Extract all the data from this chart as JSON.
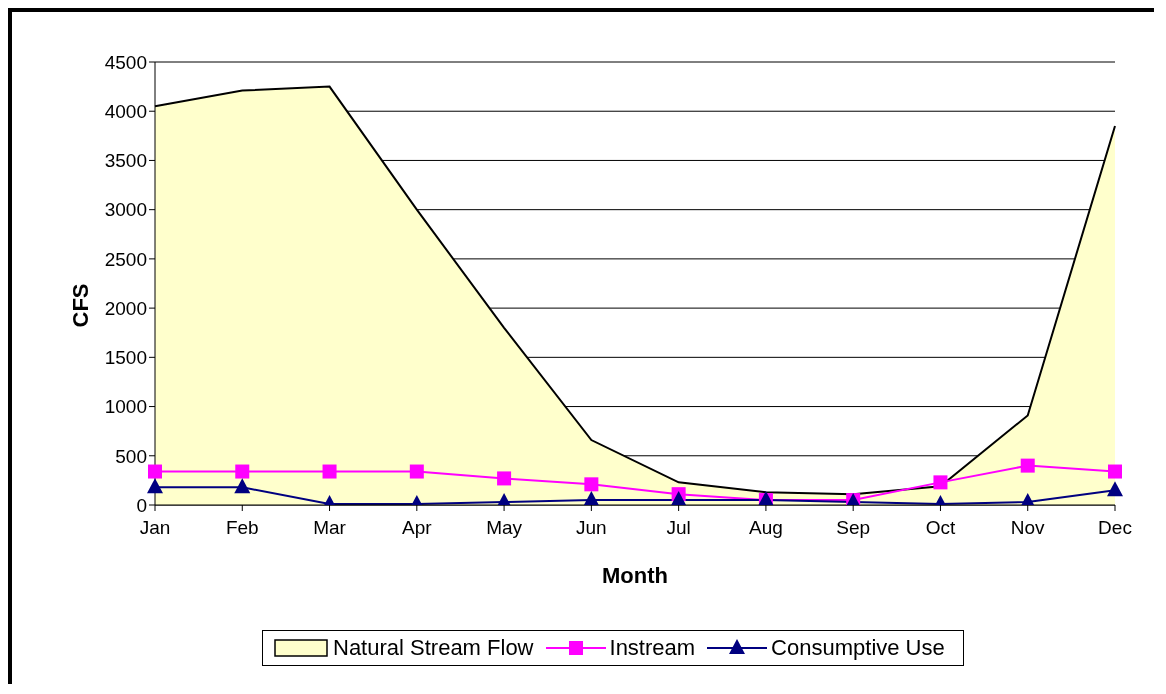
{
  "chart_data": {
    "type": "line",
    "xlabel": "Month",
    "ylabel": "CFS",
    "categories": [
      "Jan",
      "Feb",
      "Mar",
      "Apr",
      "May",
      "Jun",
      "Jul",
      "Aug",
      "Sep",
      "Oct",
      "Nov",
      "Dec"
    ],
    "series": [
      {
        "name": "Natural Stream Flow",
        "type": "area",
        "color": "#ffffcc",
        "values": [
          4050,
          4210,
          4250,
          3000,
          1800,
          660,
          230,
          130,
          110,
          190,
          910,
          3850
        ]
      },
      {
        "name": "Instream",
        "color": "#ff00ff",
        "marker": "square",
        "values": [
          340,
          340,
          340,
          340,
          270,
          210,
          110,
          50,
          50,
          230,
          400,
          340
        ]
      },
      {
        "name": "Consumptive Use",
        "color": "#000080",
        "marker": "triangle",
        "values": [
          180,
          180,
          10,
          10,
          30,
          50,
          50,
          50,
          30,
          10,
          30,
          150
        ]
      }
    ],
    "ylim": [
      0,
      4500
    ],
    "yticks": [
      0,
      500,
      1000,
      1500,
      2000,
      2500,
      3000,
      3500,
      4000,
      4500
    ],
    "grid": "y",
    "legend": "bottom"
  }
}
